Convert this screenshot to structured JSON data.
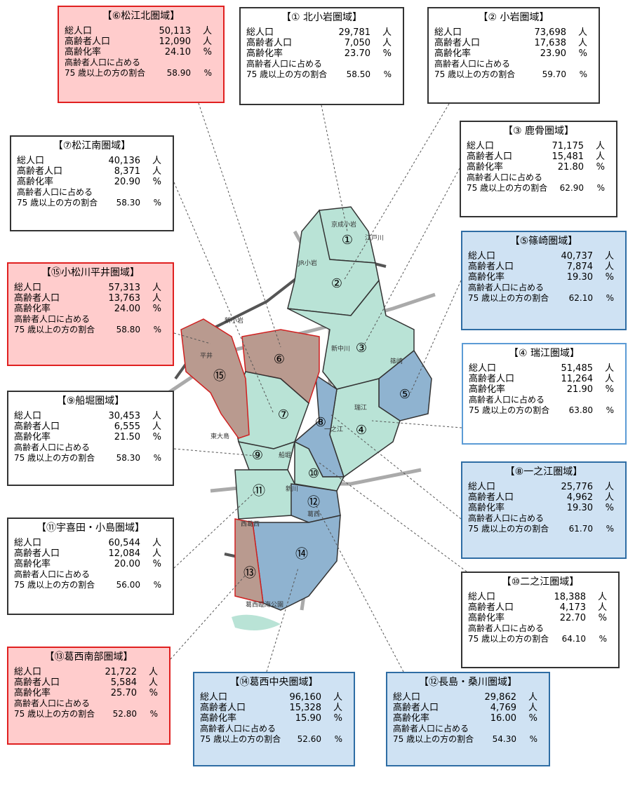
{
  "labels": {
    "total": "総人口",
    "elderly": "高齢者人口",
    "rate": "高齢化率",
    "ratio_1": "高齢者人口に占める",
    "ratio_2": "75 歳以上の方の割合",
    "person": "人",
    "percent": "%"
  },
  "boxes": [
    {
      "title": "【⑥松江北圏域】",
      "total": "50,113",
      "elderly": "12,090",
      "rate": "24.10",
      "ratio": "58.90",
      "fill": "#ffcccc",
      "border": "#e02020"
    },
    {
      "title": "【① 北小岩圏域】",
      "total": "29,781",
      "elderly": "7,050",
      "rate": "23.70",
      "ratio": "58.50",
      "fill": "#ffffff",
      "border": "#333333"
    },
    {
      "title": "【② 小岩圏域】",
      "total": "73,698",
      "elderly": "17,638",
      "rate": "23.90",
      "ratio": "59.70",
      "fill": "#ffffff",
      "border": "#333333"
    },
    {
      "title": "【⑦松江南圏域】",
      "total": "40,136",
      "elderly": "8,371",
      "rate": "20.90",
      "ratio": "58.30",
      "fill": "#ffffff",
      "border": "#333333"
    },
    {
      "title": "【③ 鹿骨圏域】",
      "total": "71,175",
      "elderly": "15,481",
      "rate": "21.80",
      "ratio": "62.90",
      "fill": "#ffffff",
      "border": "#333333"
    },
    {
      "title": "【⑮小松川平井圏域】",
      "total": "57,313",
      "elderly": "13,763",
      "rate": "24.00",
      "ratio": "58.80",
      "fill": "#ffcccc",
      "border": "#e02020"
    },
    {
      "title": "【⑤篠崎圏域】",
      "total": "40,737",
      "elderly": "7,874",
      "rate": "19.30",
      "ratio": "62.10",
      "fill": "#cfe2f3",
      "border": "#2e6da4"
    },
    {
      "title": "【④ 瑞江圏域】",
      "total": "51,485",
      "elderly": "11,264",
      "rate": "21.90",
      "ratio": "63.80",
      "fill": "#ffffff",
      "border": "#5b9bd5"
    },
    {
      "title": "【⑨船堀圏域】",
      "total": "30,453",
      "elderly": "6,555",
      "rate": "21.50",
      "ratio": "58.30",
      "fill": "#ffffff",
      "border": "#333333"
    },
    {
      "title": "【⑧一之江圏域】",
      "total": "25,776",
      "elderly": "4,962",
      "rate": "19.30",
      "ratio": "61.70",
      "fill": "#cfe2f3",
      "border": "#2e6da4"
    },
    {
      "title": "【⑪宇喜田・小島圏域】",
      "total": "60,544",
      "elderly": "12,084",
      "rate": "20.00",
      "ratio": "56.00",
      "fill": "#ffffff",
      "border": "#333333"
    },
    {
      "title": "【⑩二之江圏域】",
      "total": "18,388",
      "elderly": "4,173",
      "rate": "22.70",
      "ratio": "64.10",
      "fill": "#ffffff",
      "border": "#333333"
    },
    {
      "title": "【⑬葛西南部圏域】",
      "total": "21,722",
      "elderly": "5,584",
      "rate": "25.70",
      "ratio": "52.80",
      "fill": "#ffcccc",
      "border": "#e02020"
    },
    {
      "title": "【⑭葛西中央圏域】",
      "total": "96,160",
      "elderly": "15,328",
      "rate": "15.90",
      "ratio": "52.60",
      "fill": "#cfe2f3",
      "border": "#2e6da4"
    },
    {
      "title": "【⑫長島・桑川圏域】",
      "total": "29,862",
      "elderly": "4,769",
      "rate": "16.00",
      "ratio": "54.30",
      "fill": "#cfe2f3",
      "border": "#2e6da4"
    }
  ],
  "map": {
    "districts": [
      "①",
      "②",
      "③",
      "④",
      "⑤",
      "⑥",
      "⑦",
      "⑧",
      "⑨",
      "⑩",
      "⑪",
      "⑫",
      "⑬",
      "⑭",
      "⑮"
    ],
    "stations": [
      "京成小岩",
      "江戸川",
      "JR小岩",
      "新小岩",
      "新中川",
      "篠崎",
      "瑞江",
      "一之江",
      "船堀",
      "東大島",
      "平井",
      "新川",
      "葛西",
      "西葛西",
      "葛西臨海公園"
    ]
  }
}
